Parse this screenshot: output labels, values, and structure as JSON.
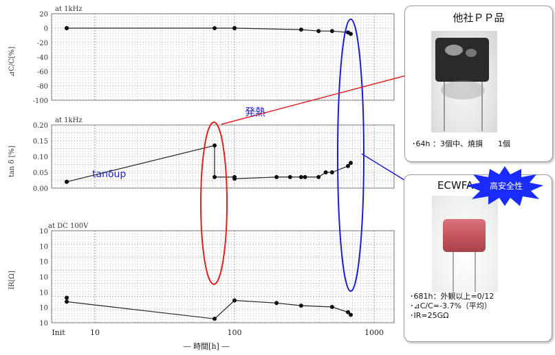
{
  "charts": {
    "dc": {
      "condition": "at 1kHz",
      "ylabel": "⊿C/C[%]",
      "ticks": [
        "20",
        "0",
        "-20",
        "-40",
        "-60",
        "-80",
        "-100"
      ]
    },
    "tan": {
      "condition": "at 1kHz",
      "ylabel": "tan δ [%]",
      "ticks": [
        "0.20",
        "0.15",
        "0.10",
        "0.05",
        "0.00"
      ]
    },
    "ir": {
      "condition": "at DC 100V",
      "ylabel": "IR[Ω]",
      "ticks": [
        "10",
        "10",
        "10",
        "10",
        "10",
        "10",
        "10"
      ]
    },
    "xaxis": {
      "ticks": [
        "Init",
        "10",
        "100",
        "1000"
      ],
      "label": "― 時間[h] ―"
    }
  },
  "chart_data": [
    {
      "type": "scatter",
      "title": "",
      "xlabel": "時間[h]",
      "ylabel": "⊿C/C[%]",
      "x_scale": "log",
      "ylim": [
        -100,
        20
      ],
      "series": [
        {
          "x": [
            "Init",
            "Init",
            72,
            100,
            100,
            300,
            400,
            500,
            650,
            680
          ],
          "y": [
            0,
            0,
            0,
            0,
            0,
            -2,
            -4,
            -4,
            -6,
            -8
          ]
        }
      ]
    },
    {
      "type": "scatter",
      "title": "",
      "xlabel": "時間[h]",
      "ylabel": "tan δ [%]",
      "x_scale": "log",
      "ylim": [
        0,
        0.2
      ],
      "series": [
        {
          "x": [
            "Init",
            "Init",
            72,
            72,
            100,
            100,
            200,
            250,
            300,
            320,
            400,
            450,
            500,
            650,
            680
          ],
          "y": [
            0.02,
            0.02,
            0.135,
            0.035,
            0.035,
            0.03,
            0.035,
            0.035,
            0.035,
            0.035,
            0.035,
            0.05,
            0.05,
            0.07,
            0.08
          ]
        }
      ]
    },
    {
      "type": "scatter",
      "title": "",
      "xlabel": "時間[h]",
      "ylabel": "IR[Ω]",
      "x_scale": "log",
      "series": [
        {
          "x": [
            "Init",
            "Init",
            72,
            100,
            200,
            300,
            500,
            650,
            680
          ],
          "y_level": [
            1.9,
            1.6,
            0.3,
            1.7,
            1.5,
            1.3,
            1.2,
            0.8,
            0.6
          ]
        }
      ]
    }
  ],
  "annotations": {
    "hatsunetsu": "発熱",
    "tan_up": "tanδup"
  },
  "panels": {
    "competitor": {
      "title": "他社ＰＰ品",
      "note": "･64h ：3個中、焼損　　1個"
    },
    "ecwfa": {
      "title": "ECWFA",
      "badge": "高安全性",
      "notes": [
        "･681h：外観以上=0/12",
        "･⊿C/C=-3.7%（平均）",
        "･IR=25GΩ"
      ]
    }
  },
  "colors": {
    "red": "#e02020",
    "blue": "#1a1ad6",
    "badge": "#1a2bff"
  }
}
